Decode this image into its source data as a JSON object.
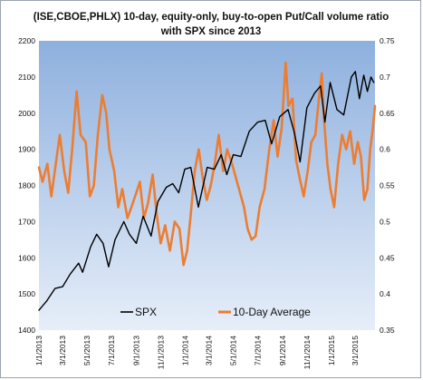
{
  "chart_data": {
    "type": "line",
    "title": "(ISE,CBOE,PHLX) 10-day, equity-only, buy-to-open Put/Call volume ratio",
    "subtitle": "with SPX since 2013",
    "x_tick_labels": [
      "1/1/2013",
      "3/1/2013",
      "5/1/2013",
      "7/1/2013",
      "9/1/2013",
      "11/1/2013",
      "1/1/2014",
      "3/1/2014",
      "5/1/2014",
      "7/1/2014",
      "9/1/2014",
      "11/1/2014",
      "1/1/2015",
      "3/1/2015"
    ],
    "xlim": [
      "2013-01-01",
      "2015-04-20"
    ],
    "y_left": {
      "ylim": [
        1400,
        2200
      ],
      "ticks": [
        1400,
        1500,
        1600,
        1700,
        1800,
        1900,
        2000,
        2100,
        2200
      ]
    },
    "y_right": {
      "ylim": [
        0.35,
        0.75
      ],
      "ticks": [
        "0.35",
        "0.4",
        "0.45",
        "0.5",
        "0.55",
        "0.6",
        "0.65",
        "0.7",
        "0.75"
      ]
    },
    "series": [
      {
        "name": "SPX",
        "axis": "left",
        "color": "#000000",
        "points": [
          [
            "2013-01-01",
            1455
          ],
          [
            "2013-01-20",
            1480
          ],
          [
            "2013-02-10",
            1515
          ],
          [
            "2013-03-01",
            1520
          ],
          [
            "2013-03-20",
            1555
          ],
          [
            "2013-04-10",
            1585
          ],
          [
            "2013-04-20",
            1560
          ],
          [
            "2013-05-10",
            1630
          ],
          [
            "2013-05-25",
            1665
          ],
          [
            "2013-06-10",
            1640
          ],
          [
            "2013-06-24",
            1575
          ],
          [
            "2013-07-10",
            1650
          ],
          [
            "2013-08-01",
            1700
          ],
          [
            "2013-08-15",
            1665
          ],
          [
            "2013-09-01",
            1640
          ],
          [
            "2013-09-18",
            1715
          ],
          [
            "2013-10-08",
            1660
          ],
          [
            "2013-10-25",
            1755
          ],
          [
            "2013-11-15",
            1795
          ],
          [
            "2013-12-01",
            1805
          ],
          [
            "2013-12-16",
            1780
          ],
          [
            "2013-12-31",
            1845
          ],
          [
            "2014-01-15",
            1850
          ],
          [
            "2014-02-03",
            1740
          ],
          [
            "2014-02-25",
            1850
          ],
          [
            "2014-03-15",
            1845
          ],
          [
            "2014-04-01",
            1885
          ],
          [
            "2014-04-15",
            1830
          ],
          [
            "2014-05-01",
            1885
          ],
          [
            "2014-05-20",
            1880
          ],
          [
            "2014-06-10",
            1950
          ],
          [
            "2014-07-01",
            1975
          ],
          [
            "2014-07-20",
            1980
          ],
          [
            "2014-08-05",
            1915
          ],
          [
            "2014-08-25",
            1990
          ],
          [
            "2014-09-15",
            2010
          ],
          [
            "2014-10-01",
            1945
          ],
          [
            "2014-10-15",
            1865
          ],
          [
            "2014-11-01",
            2015
          ],
          [
            "2014-11-20",
            2055
          ],
          [
            "2014-12-05",
            2075
          ],
          [
            "2014-12-16",
            1975
          ],
          [
            "2014-12-29",
            2085
          ],
          [
            "2015-01-15",
            2010
          ],
          [
            "2015-02-01",
            1995
          ],
          [
            "2015-02-20",
            2100
          ],
          [
            "2015-03-02",
            2115
          ],
          [
            "2015-03-12",
            2040
          ],
          [
            "2015-03-23",
            2105
          ],
          [
            "2015-04-01",
            2060
          ],
          [
            "2015-04-10",
            2100
          ],
          [
            "2015-04-17",
            2085
          ]
        ]
      },
      {
        "name": "10-Day Average",
        "axis": "right",
        "color": "#ed7d31",
        "points": [
          [
            "2013-01-01",
            0.575
          ],
          [
            "2013-01-10",
            0.555
          ],
          [
            "2013-01-22",
            0.58
          ],
          [
            "2013-02-01",
            0.535
          ],
          [
            "2013-02-12",
            0.58
          ],
          [
            "2013-02-22",
            0.62
          ],
          [
            "2013-03-05",
            0.57
          ],
          [
            "2013-03-15",
            0.54
          ],
          [
            "2013-03-25",
            0.6
          ],
          [
            "2013-04-05",
            0.68
          ],
          [
            "2013-04-15",
            0.62
          ],
          [
            "2013-04-28",
            0.61
          ],
          [
            "2013-05-08",
            0.535
          ],
          [
            "2013-05-18",
            0.55
          ],
          [
            "2013-05-28",
            0.62
          ],
          [
            "2013-06-08",
            0.675
          ],
          [
            "2013-06-18",
            0.65
          ],
          [
            "2013-06-26",
            0.6
          ],
          [
            "2013-07-08",
            0.57
          ],
          [
            "2013-07-18",
            0.52
          ],
          [
            "2013-07-28",
            0.545
          ],
          [
            "2013-08-10",
            0.505
          ],
          [
            "2013-08-20",
            0.52
          ],
          [
            "2013-09-01",
            0.54
          ],
          [
            "2013-09-10",
            0.555
          ],
          [
            "2013-09-20",
            0.505
          ],
          [
            "2013-09-30",
            0.525
          ],
          [
            "2013-10-12",
            0.565
          ],
          [
            "2013-10-22",
            0.51
          ],
          [
            "2013-11-01",
            0.47
          ],
          [
            "2013-11-12",
            0.495
          ],
          [
            "2013-11-24",
            0.46
          ],
          [
            "2013-12-06",
            0.5
          ],
          [
            "2013-12-18",
            0.49
          ],
          [
            "2013-12-28",
            0.44
          ],
          [
            "2014-01-06",
            0.46
          ],
          [
            "2014-01-15",
            0.51
          ],
          [
            "2014-01-25",
            0.57
          ],
          [
            "2014-02-04",
            0.6
          ],
          [
            "2014-02-14",
            0.56
          ],
          [
            "2014-02-24",
            0.53
          ],
          [
            "2014-03-06",
            0.55
          ],
          [
            "2014-03-16",
            0.58
          ],
          [
            "2014-03-26",
            0.62
          ],
          [
            "2014-04-06",
            0.57
          ],
          [
            "2014-04-16",
            0.6
          ],
          [
            "2014-04-28",
            0.58
          ],
          [
            "2014-05-08",
            0.56
          ],
          [
            "2014-05-18",
            0.54
          ],
          [
            "2014-05-28",
            0.52
          ],
          [
            "2014-06-06",
            0.49
          ],
          [
            "2014-06-16",
            0.475
          ],
          [
            "2014-06-26",
            0.48
          ],
          [
            "2014-07-06",
            0.52
          ],
          [
            "2014-07-18",
            0.545
          ],
          [
            "2014-07-30",
            0.6
          ],
          [
            "2014-08-10",
            0.64
          ],
          [
            "2014-08-20",
            0.59
          ],
          [
            "2014-08-30",
            0.63
          ],
          [
            "2014-09-09",
            0.72
          ],
          [
            "2014-09-16",
            0.66
          ],
          [
            "2014-09-26",
            0.67
          ],
          [
            "2014-10-05",
            0.585
          ],
          [
            "2014-10-14",
            0.56
          ],
          [
            "2014-10-24",
            0.535
          ],
          [
            "2014-11-03",
            0.57
          ],
          [
            "2014-11-12",
            0.61
          ],
          [
            "2014-11-22",
            0.62
          ],
          [
            "2014-12-02",
            0.675
          ],
          [
            "2014-12-08",
            0.705
          ],
          [
            "2014-12-14",
            0.64
          ],
          [
            "2014-12-22",
            0.58
          ],
          [
            "2014-12-30",
            0.545
          ],
          [
            "2015-01-08",
            0.52
          ],
          [
            "2015-01-18",
            0.58
          ],
          [
            "2015-01-28",
            0.62
          ],
          [
            "2015-02-07",
            0.6
          ],
          [
            "2015-02-17",
            0.625
          ],
          [
            "2015-02-27",
            0.58
          ],
          [
            "2015-03-08",
            0.61
          ],
          [
            "2015-03-16",
            0.59
          ],
          [
            "2015-03-24",
            0.53
          ],
          [
            "2015-04-01",
            0.545
          ],
          [
            "2015-04-08",
            0.6
          ],
          [
            "2015-04-14",
            0.625
          ],
          [
            "2015-04-20",
            0.66
          ]
        ]
      }
    ],
    "legend": {
      "placement": "bottom-left",
      "entries": [
        "SPX",
        "10-Day Average"
      ]
    },
    "plot_background": {
      "top_color": "#8eb0de",
      "bottom_color": "#e6eef9"
    },
    "grid": false
  }
}
